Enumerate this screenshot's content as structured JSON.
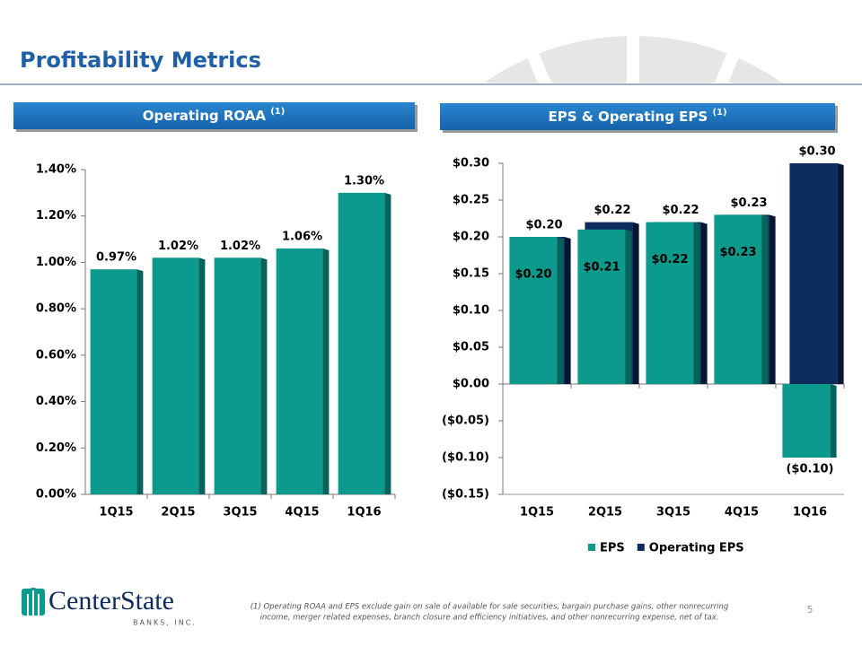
{
  "title": "Profitability Metrics",
  "chart_data": [
    {
      "type": "bar",
      "title": "Operating ROAA",
      "title_superscript": "(1)",
      "categories": [
        "1Q15",
        "2Q15",
        "3Q15",
        "4Q15",
        "1Q16"
      ],
      "values": [
        0.97,
        1.02,
        1.02,
        1.06,
        1.3
      ],
      "value_labels": [
        "0.97%",
        "1.02%",
        "1.02%",
        "1.06%",
        "1.30%"
      ],
      "color": "#0b9a8c",
      "side_color": "#06625a",
      "ylim": [
        0,
        1.4
      ],
      "yticks": [
        {
          "value": 0,
          "label": "0.00%"
        },
        {
          "value": 0.2,
          "label": "0.20%"
        },
        {
          "value": 0.4,
          "label": "0.40%"
        },
        {
          "value": 0.6,
          "label": "0.60%"
        },
        {
          "value": 0.8,
          "label": "0.80%"
        },
        {
          "value": 1.0,
          "label": "1.00%"
        },
        {
          "value": 1.2,
          "label": "1.20%"
        },
        {
          "value": 1.4,
          "label": "1.40%"
        }
      ]
    },
    {
      "type": "grouped-bar",
      "title": "EPS & Operating EPS",
      "title_superscript": "(1)",
      "categories": [
        "1Q15",
        "2Q15",
        "3Q15",
        "4Q15",
        "1Q16"
      ],
      "series": [
        {
          "name": "EPS",
          "color": "#0b9a8c",
          "side_color": "#06625a",
          "values": [
            0.2,
            0.21,
            0.22,
            0.23,
            -0.1
          ],
          "value_labels": [
            "$0.20",
            "$0.21",
            "$0.22",
            "$0.23",
            "($0.10)"
          ]
        },
        {
          "name": "Operating EPS",
          "color": "#0d2b5e",
          "side_color": "#061633",
          "values": [
            0.2,
            0.22,
            0.22,
            0.23,
            0.3
          ],
          "value_labels": [
            "$0.20",
            "$0.22",
            "$0.22",
            "$0.23",
            "$0.30"
          ]
        }
      ],
      "negative_label_color": "#e0201e",
      "ylim": [
        -0.15,
        0.3
      ],
      "yticks": [
        {
          "value": -0.15,
          "label": "($0.15)"
        },
        {
          "value": -0.1,
          "label": "($0.10)"
        },
        {
          "value": -0.05,
          "label": "($0.05)"
        },
        {
          "value": 0,
          "label": "$0.00"
        },
        {
          "value": 0.05,
          "label": "$0.05"
        },
        {
          "value": 0.1,
          "label": "$0.10"
        },
        {
          "value": 0.15,
          "label": "$0.15"
        },
        {
          "value": 0.2,
          "label": "$0.20"
        },
        {
          "value": 0.25,
          "label": "$0.25"
        },
        {
          "value": 0.3,
          "label": "$0.30"
        }
      ],
      "legend": "bottom"
    }
  ],
  "footnote": [
    "(1) Operating ROAA and EPS exclude gain on sale of available for sale securities, bargain purchase gains, other nonrecurring",
    "income, merger related expenses, branch closure and efficiency initiatives, and other nonrecurring expense, net of tax."
  ],
  "logo": {
    "name": "CenterState",
    "subtitle": "BANKS, INC."
  },
  "page_number": "5"
}
